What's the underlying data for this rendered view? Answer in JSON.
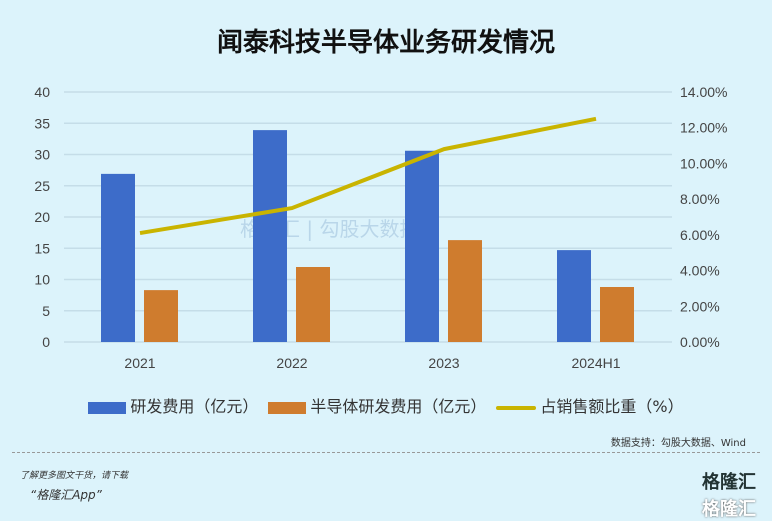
{
  "title": "闻泰科技半导体业务研发情况",
  "chart_data": {
    "type": "bar",
    "categories": [
      "2021",
      "2022",
      "2023",
      "2024H1"
    ],
    "series": [
      {
        "name": "研发费用（亿元）",
        "type": "bar",
        "axis": "left",
        "color": "#3d6cc9",
        "values": [
          26.9,
          33.9,
          30.6,
          14.7
        ]
      },
      {
        "name": "半导体研发费用（亿元）",
        "type": "bar",
        "axis": "left",
        "color": "#cf7c2e",
        "values": [
          8.3,
          12.0,
          16.3,
          8.8
        ]
      },
      {
        "name": "占销售额比重（%）",
        "type": "line",
        "axis": "right",
        "color": "#c9b400",
        "values": [
          6.1,
          7.5,
          10.8,
          12.5
        ]
      }
    ],
    "ylim": [
      0,
      40
    ],
    "yticks": [
      "0",
      "5",
      "10",
      "15",
      "20",
      "25",
      "30",
      "35",
      "40"
    ],
    "y2lim": [
      0,
      14
    ],
    "y2ticks": [
      "0.00%",
      "2.00%",
      "4.00%",
      "6.00%",
      "8.00%",
      "10.00%",
      "12.00%",
      "14.00%"
    ],
    "grid": true,
    "legend_placement": "bottom"
  },
  "watermark": "格隆汇 | 勾股大数据",
  "source": "数据支持：勾股大数据、Wind",
  "promo": {
    "line1": "了解更多图文干货，请下载",
    "line2": "“格隆汇App”"
  },
  "logo": "格隆汇"
}
